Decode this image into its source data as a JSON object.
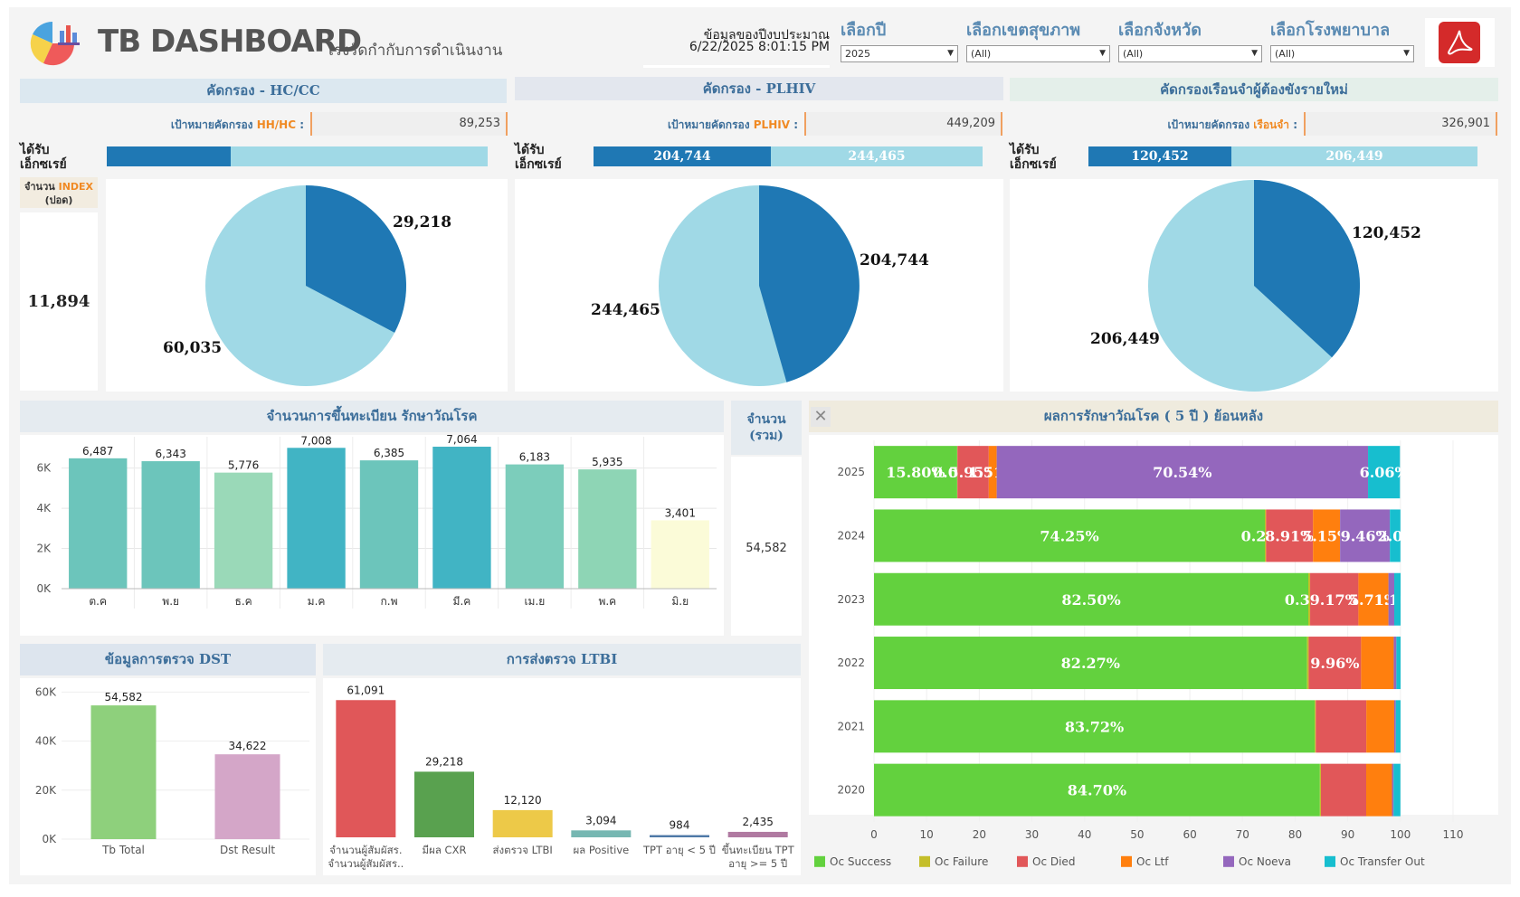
{
  "header": {
    "title": "TB DASHBOARD",
    "subtitle": "เร่งรัดกำกับการดำเนินงาน",
    "data_label": "ข้อมูลของปีงบประมาณ",
    "timestamp": "6/22/2025 8:01:15 PM"
  },
  "filters": [
    {
      "label": "เลือกปี",
      "value": "2025"
    },
    {
      "label": "เลือกเขตสุขภาพ",
      "value": "(All)"
    },
    {
      "label": "เลือกจังหวัด",
      "value": "(All)"
    },
    {
      "label": "เลือกโรงพยาบาล",
      "value": "(All)"
    }
  ],
  "screening": [
    {
      "title": "คัดกรอง - HC/CC",
      "target_prefix": "เป้าหมายคัดกรอง ",
      "target_hl": "HH/HC",
      "target_suffix": " :",
      "target_value": "89,253",
      "recv_label_1": "ได้รับ",
      "recv_label_2": "เอ็กซเรย์",
      "bar_dark": "",
      "bar_light": "",
      "pie_dark": "29,218",
      "pie_light": "60,035",
      "pie_dark_value": 29218,
      "pie_light_value": 60035
    },
    {
      "title": "คัดกรอง - PLHIV",
      "target_prefix": "เป้าหมายคัดกรอง ",
      "target_hl": "PLHIV",
      "target_suffix": " :",
      "target_value": "449,209",
      "recv_label_1": "ได้รับ",
      "recv_label_2": "เอ็กซเรย์",
      "bar_dark": "204,744",
      "bar_light": "244,465",
      "pie_dark": "204,744",
      "pie_light": "244,465",
      "pie_dark_value": 204744,
      "pie_light_value": 244465
    },
    {
      "title": "คัดกรองเรือนจำผู้ต้องขังรายใหม่",
      "target_prefix": "เป้าหมายคัดกรอง ",
      "target_hl": "เรือนจำ",
      "target_suffix": " :",
      "target_value": "326,901",
      "recv_label_1": "ได้รับ",
      "recv_label_2": "เอ็กซเรย์",
      "bar_dark": "120,452",
      "bar_light": "206,449",
      "pie_dark": "120,452",
      "pie_light": "206,449",
      "pie_dark_value": 120452,
      "pie_light_value": 206449
    }
  ],
  "index_box": {
    "label_1": "จำนวน ",
    "label_hl": "INDEX",
    "label_2": "(ปอด)",
    "value": "11,894"
  },
  "registration": {
    "title": "จำนวนการขึ้นทะเบียน รักษาวัณโรค",
    "total_title": "จำนวน (รวม)",
    "total_value": "54,582"
  },
  "dst": {
    "title": "ข้อมูลการตรวจ DST"
  },
  "ltbi": {
    "title": "การส่งตรวจ LTBI"
  },
  "outcome": {
    "title": "ผลการรักษาวัณโรค ( 5 ปี ) ย้อนหลัง"
  },
  "chart_data": [
    {
      "type": "bar",
      "name": "registration",
      "categories": [
        "ต.ค",
        "พ.ย",
        "ธ.ค",
        "ม.ค",
        "ก.พ",
        "มี.ค",
        "เม.ย",
        "พ.ค",
        "มิ.ย"
      ],
      "values": [
        6487,
        6343,
        5776,
        7008,
        6385,
        7064,
        6183,
        5935,
        3401
      ],
      "value_labels": [
        "6,487",
        "6,343",
        "5,776",
        "7,008",
        "6,385",
        "7,064",
        "6,183",
        "5,935",
        "3,401"
      ],
      "colors": [
        "#6cc5bb",
        "#6cc5bb",
        "#9ad9b8",
        "#41b4c4",
        "#6cc5bb",
        "#41b4c4",
        "#7ccdbb",
        "#8ed5b5",
        "#fbfbd8"
      ],
      "yticks": [
        "6K",
        "4K",
        "2K",
        "0K"
      ],
      "ytick_values": [
        6000,
        4000,
        2000,
        0
      ],
      "ylim": [
        0,
        7200
      ]
    },
    {
      "type": "bar",
      "name": "dst",
      "categories": [
        "Tb Total",
        "Dst Result"
      ],
      "values": [
        54582,
        34622
      ],
      "value_labels": [
        "54,582",
        "34,622"
      ],
      "colors": [
        "#8ed07c",
        "#d4a6c8"
      ],
      "yticks": [
        "60K",
        "40K",
        "20K",
        "0K"
      ],
      "ytick_values": [
        60000,
        40000,
        20000,
        0
      ],
      "ylim": [
        0,
        62000
      ]
    },
    {
      "type": "bar",
      "name": "ltbi",
      "categories": [
        "จำนวนผู้สัมผัสร..",
        "มีผล CXR",
        "ส่งตรวจ LTBI",
        "ผล Positive",
        "TPT อายุ < 5 ปี",
        "ขึ้นทะเบียน TPT อายุ >= 5 ปี"
      ],
      "values": [
        61091,
        29218,
        12120,
        3094,
        984,
        2435
      ],
      "value_labels": [
        "61,091",
        "29,218",
        "12,120",
        "3,094",
        "984",
        "2,435"
      ],
      "colors": [
        "#e05759",
        "#59a14f",
        "#edc948",
        "#76b7b2",
        "#4e79a7",
        "#b07aa1"
      ],
      "ylim": [
        0,
        62000
      ]
    },
    {
      "type": "bar",
      "name": "treatment_outcome",
      "stacked": true,
      "orientation": "horizontal",
      "categories": [
        "2025",
        "2024",
        "2023",
        "2022",
        "2021",
        "2020"
      ],
      "series": [
        {
          "name": "Oc Success",
          "color": "#63d13e",
          "values": [
            15.8,
            74.25,
            82.5,
            82.27,
            83.72,
            84.7
          ]
        },
        {
          "name": "Oc Failure",
          "color": "#c4be2a",
          "values": [
            0.05,
            0.23,
            0.35,
            0.3,
            0.2,
            0.2
          ]
        },
        {
          "name": "Oc Died",
          "color": "#e15759",
          "values": [
            5.95,
            8.91,
            9.17,
            9.96,
            9.6,
            8.6
          ]
        },
        {
          "name": "Oc Ltf",
          "color": "#ff7f0e",
          "values": [
            1.51,
            5.15,
            5.71,
            6.2,
            5.3,
            4.9
          ]
        },
        {
          "name": "Oc Noeva",
          "color": "#9467bd",
          "values": [
            70.54,
            9.46,
            1.1,
            0.5,
            0.3,
            0.3
          ]
        },
        {
          "name": "Oc Transfer Out",
          "color": "#17becf",
          "values": [
            6.06,
            2.0,
            1.2,
            0.8,
            0.9,
            1.3
          ]
        }
      ],
      "segment_labels": [
        [
          "15.80%",
          "0.05%",
          "5.95%",
          "1.51%",
          "70.54%",
          "6.06%"
        ],
        [
          "74.25%",
          "0.23%",
          "8.91%",
          "5.15%",
          "9.46%",
          "2.00"
        ],
        [
          "82.50%",
          "0.35%",
          "9.17%",
          "5.71%",
          "1.10",
          ""
        ],
        [
          "82.27%",
          "",
          "9.96%",
          "",
          "",
          ""
        ],
        [
          "83.72%",
          "",
          "",
          "",
          "",
          ""
        ],
        [
          "84.70%",
          "",
          "",
          "",
          "",
          ""
        ]
      ],
      "xticks": [
        "0",
        "10",
        "20",
        "30",
        "40",
        "50",
        "60",
        "70",
        "80",
        "90",
        "100",
        "110"
      ],
      "xlim": [
        0,
        110
      ]
    }
  ]
}
